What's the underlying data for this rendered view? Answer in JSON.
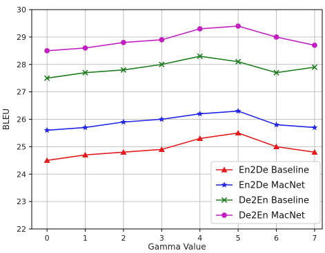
{
  "chart_data": {
    "type": "line",
    "xlabel": "Gamma Value",
    "ylabel": "BLEU",
    "x": [
      0,
      1,
      2,
      3,
      4,
      5,
      6,
      7
    ],
    "xlim": [
      -0.4,
      7.2
    ],
    "ylim": [
      22,
      30
    ],
    "xticks": [
      "0",
      "1",
      "2",
      "3",
      "4",
      "5",
      "6",
      "7"
    ],
    "yticks": [
      "22",
      "23",
      "24",
      "25",
      "26",
      "27",
      "28",
      "29",
      "30"
    ],
    "grid": true,
    "legend_position": "bottom-right",
    "series": [
      {
        "name": "En2De Baseline",
        "color": "#e41a1c",
        "marker": "triangle",
        "values": [
          24.5,
          24.7,
          24.8,
          24.9,
          25.3,
          25.5,
          25.0,
          24.8
        ]
      },
      {
        "name": "En2De MacNet",
        "color": "#1f23e6",
        "marker": "star",
        "values": [
          25.6,
          25.7,
          25.9,
          26.0,
          26.2,
          26.3,
          25.8,
          25.7
        ]
      },
      {
        "name": "De2En Baseline",
        "color": "#1e7d1e",
        "marker": "x",
        "values": [
          27.5,
          27.7,
          27.8,
          28.0,
          28.3,
          28.1,
          27.7,
          27.9
        ]
      },
      {
        "name": "De2En MacNet",
        "color": "#c21fc2",
        "marker": "circle",
        "values": [
          28.5,
          28.6,
          28.8,
          28.9,
          29.3,
          29.4,
          29.0,
          28.7
        ]
      }
    ]
  }
}
